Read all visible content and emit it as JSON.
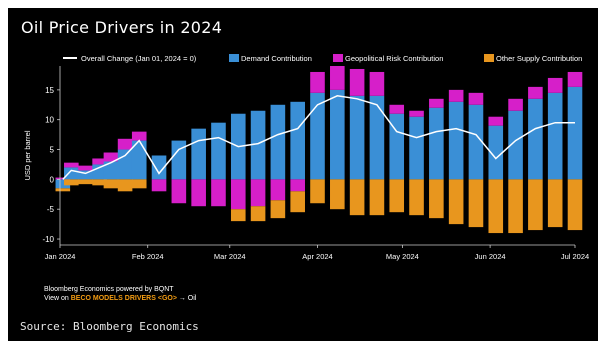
{
  "page": {
    "title": "Oil Price Drivers in 2024",
    "footer_line1": "Bloomberg Economics powered by BQNT",
    "footer_line2_prefix": "View on ",
    "footer_line2_highlight": "BECO MODELS DRIVERS <GO>",
    "footer_line2_suffix": " → Oil",
    "source": "Source: Bloomberg Economics"
  },
  "colors": {
    "background": "#000000",
    "demand": "#3a8fd6",
    "geopolitical": "#d61fc9",
    "other_supply": "#e8961e",
    "overall": "#ffffff"
  },
  "chart_data": {
    "type": "bar",
    "stacked": true,
    "title": "Oil Price Drivers in 2024",
    "ylabel": "USD per barrel",
    "xlabel": "",
    "ylim": [
      -11,
      19
    ],
    "yticks": [
      -10,
      -5,
      0,
      5,
      10,
      15
    ],
    "xtick_labels": [
      "Jan 2024",
      "Feb 2024",
      "Mar 2024",
      "Apr 2024",
      "May 2024",
      "Jun 2024",
      "Jul 2024"
    ],
    "legend": [
      "Overall Change (Jan 01, 2024 = 0)",
      "Demand Contribution",
      "Geopolitical Risk Contribution",
      "Other Supply Contribution"
    ],
    "legend_position": "top",
    "x": [
      "2024-01-02",
      "2024-01-05",
      "2024-01-10",
      "2024-01-15",
      "2024-01-19",
      "2024-01-24",
      "2024-01-29",
      "2024-02-05",
      "2024-02-12",
      "2024-02-19",
      "2024-02-26",
      "2024-03-04",
      "2024-03-11",
      "2024-03-18",
      "2024-03-25",
      "2024-04-01",
      "2024-04-08",
      "2024-04-15",
      "2024-04-22",
      "2024-04-29",
      "2024-05-06",
      "2024-05-13",
      "2024-05-20",
      "2024-05-27",
      "2024-06-03",
      "2024-06-10",
      "2024-06-17",
      "2024-06-24",
      "2024-07-01"
    ],
    "series": [
      {
        "name": "Demand Contribution",
        "values": [
          -1.5,
          2.0,
          1.5,
          2.5,
          3.0,
          5.0,
          6.5,
          4.0,
          6.5,
          8.5,
          9.5,
          11.0,
          11.5,
          12.5,
          13.0,
          14.5,
          15.0,
          14.0,
          14.0,
          11.0,
          10.5,
          12.0,
          13.0,
          12.5,
          9.0,
          11.5,
          13.5,
          14.5,
          15.5
        ]
      },
      {
        "name": "Geopolitical Risk Contribution",
        "values": [
          0.3,
          0.8,
          0.8,
          1.0,
          1.5,
          1.8,
          1.5,
          -2.0,
          -4.0,
          -4.5,
          -4.5,
          -5.0,
          -4.5,
          -3.5,
          -2.0,
          3.5,
          4.0,
          4.5,
          4.0,
          1.5,
          1.0,
          1.5,
          2.0,
          2.0,
          1.5,
          2.0,
          2.0,
          2.5,
          2.5
        ]
      },
      {
        "name": "Other Supply Contribution",
        "values": [
          -0.5,
          -1.0,
          -0.8,
          -1.0,
          -1.5,
          -2.0,
          -1.5,
          0,
          0,
          0,
          0,
          -2.0,
          -2.5,
          -3.0,
          -3.5,
          -4.0,
          -5.0,
          -6.0,
          -6.0,
          -5.5,
          -6.0,
          -6.5,
          -7.5,
          -8.0,
          -9.0,
          -9.0,
          -8.5,
          -8.0,
          -8.5
        ]
      }
    ],
    "overall_change": [
      0.0,
      1.5,
      1.0,
      2.0,
      2.8,
      4.0,
      6.5,
      1.0,
      5.0,
      6.5,
      7.0,
      5.5,
      6.0,
      7.5,
      8.5,
      12.5,
      14.0,
      13.5,
      12.5,
      8.0,
      7.0,
      8.0,
      8.5,
      7.5,
      3.5,
      6.5,
      8.5,
      9.5,
      9.5
    ]
  }
}
